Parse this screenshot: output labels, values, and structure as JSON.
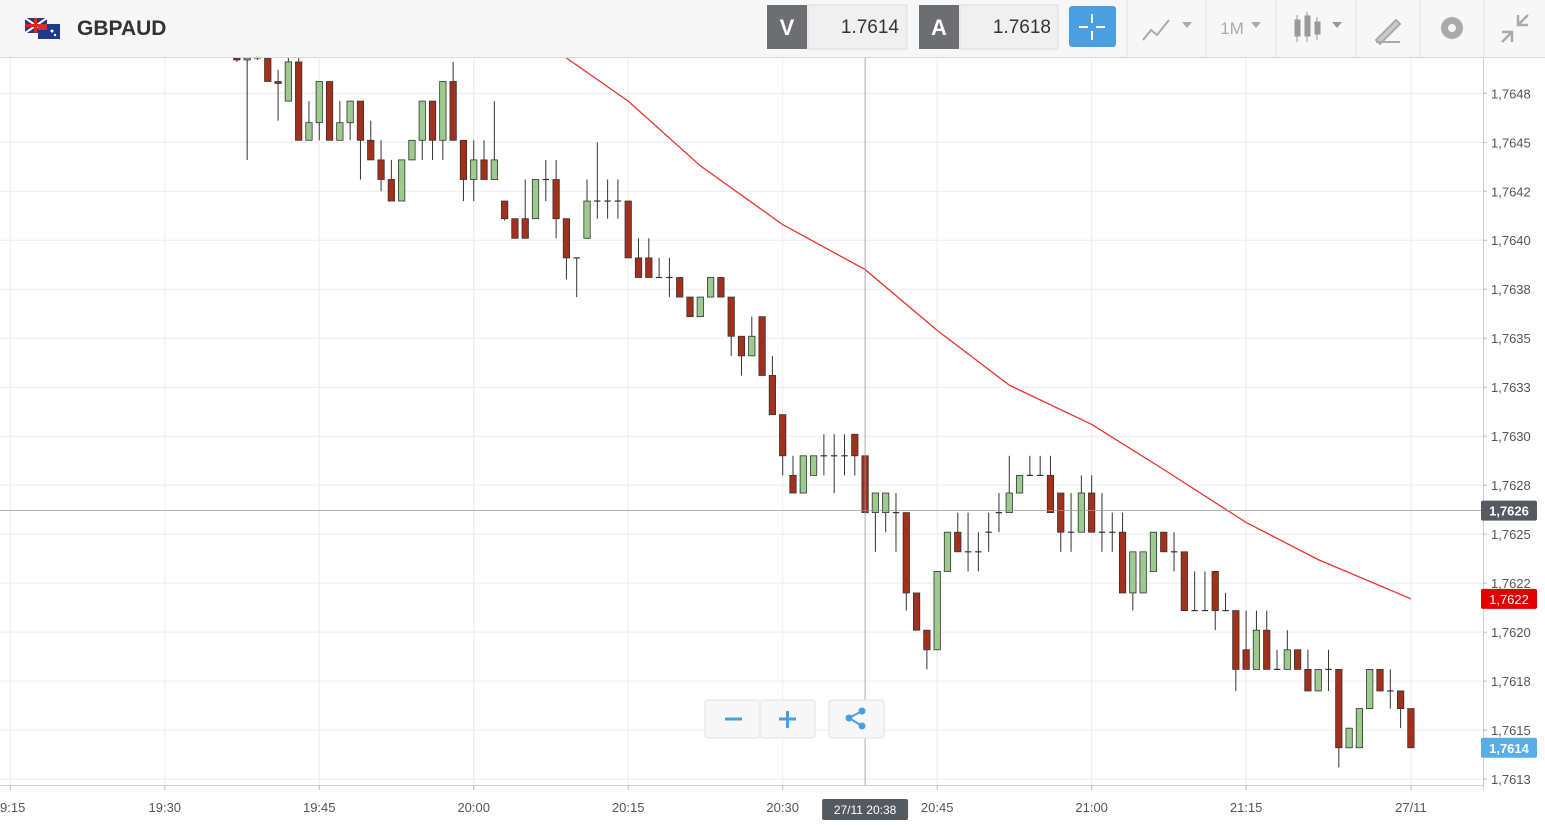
{
  "header": {
    "symbol": "GBPAUD",
    "sell_label": "V",
    "sell_price": "1.7614",
    "buy_label": "A",
    "buy_price": "1.7618",
    "timeframe": "1M"
  },
  "chart_data": {
    "type": "candlestick",
    "xlim": [
      "19:14",
      "21:38"
    ],
    "ylim": [
      1.76122,
      1.76493
    ],
    "xticks": [
      {
        "value": "19:15",
        "label": "9:15"
      },
      "19:30",
      "19:45",
      "20:00",
      "20:15",
      "20:30",
      "20:45",
      "21:00",
      "21:15",
      {
        "value": "21:31",
        "label": "27/11"
      }
    ],
    "yticks": [
      {
        "value": 1.76475,
        "label": "1,7648"
      },
      {
        "value": 1.7645,
        "label": "1,7645"
      },
      {
        "value": 1.76425,
        "label": "1,7642"
      },
      {
        "value": 1.764,
        "label": "1,7640"
      },
      {
        "value": 1.76375,
        "label": "1,7638"
      },
      {
        "value": 1.7635,
        "label": "1,7635"
      },
      {
        "value": 1.76325,
        "label": "1,7633"
      },
      {
        "value": 1.763,
        "label": "1,7630"
      },
      {
        "value": 1.76275,
        "label": "1,7628"
      },
      {
        "value": 1.7625,
        "label": "1,7625"
      },
      {
        "value": 1.76225,
        "label": "1,7622"
      },
      {
        "value": 1.762,
        "label": "1,7620"
      },
      {
        "value": 1.76175,
        "label": "1,7618"
      },
      {
        "value": 1.7615,
        "label": "1,7615"
      },
      {
        "value": 1.76125,
        "label": "1,7613"
      }
    ],
    "grid": true,
    "up_color": "#9dca8e",
    "down_color": "#a3301b",
    "x": [
      "19:37",
      "19:38",
      "19:39",
      "19:40",
      "19:41",
      "19:42",
      "19:43",
      "19:44",
      "19:45",
      "19:46",
      "19:47",
      "19:48",
      "19:49",
      "19:50",
      "19:51",
      "19:52",
      "19:53",
      "19:54",
      "19:55",
      "19:56",
      "19:57",
      "19:58",
      "19:59",
      "20:00",
      "20:01",
      "20:02",
      "20:03",
      "20:04",
      "20:05",
      "20:06",
      "20:07",
      "20:08",
      "20:09",
      "20:10",
      "20:11",
      "20:12",
      "20:13",
      "20:14",
      "20:15",
      "20:16",
      "20:17",
      "20:18",
      "20:19",
      "20:20",
      "20:21",
      "20:22",
      "20:23",
      "20:24",
      "20:25",
      "20:26",
      "20:27",
      "20:28",
      "20:29",
      "20:30",
      "20:31",
      "20:32",
      "20:33",
      "20:34",
      "20:35",
      "20:36",
      "20:37",
      "20:38",
      "20:39",
      "20:40",
      "20:41",
      "20:42",
      "20:43",
      "20:44",
      "20:45",
      "20:46",
      "20:47",
      "20:48",
      "20:49",
      "20:50",
      "20:51",
      "20:52",
      "20:53",
      "20:54",
      "20:55",
      "20:56",
      "20:57",
      "20:58",
      "20:59",
      "21:00",
      "21:01",
      "21:02",
      "21:03",
      "21:04",
      "21:05",
      "21:06",
      "21:07",
      "21:08",
      "21:09",
      "21:10",
      "21:11",
      "21:12",
      "21:13",
      "21:14",
      "21:15",
      "21:16",
      "21:17",
      "21:18",
      "21:19",
      "21:20",
      "21:21",
      "21:22",
      "21:23",
      "21:24",
      "21:25",
      "21:26",
      "21:27",
      "21:28",
      "21:29",
      "21:30",
      "21:31"
    ],
    "open": [
      1.76493,
      1.76492,
      1.76493,
      1.76493,
      1.76481,
      1.76471,
      1.76491,
      1.76451,
      1.7646,
      1.76481,
      1.76451,
      1.7646,
      1.76471,
      1.76451,
      1.76441,
      1.76431,
      1.7642,
      1.76441,
      1.76451,
      1.76471,
      1.76451,
      1.76481,
      1.76451,
      1.76431,
      1.76441,
      1.76431,
      1.7642,
      1.76411,
      1.76411,
      1.76411,
      1.76431,
      1.76431,
      1.76411,
      1.76391,
      1.76401,
      1.7642,
      1.7642,
      1.7642,
      1.7642,
      1.76391,
      1.76391,
      1.76381,
      1.76381,
      1.76381,
      1.76371,
      1.76361,
      1.76371,
      1.76381,
      1.76371,
      1.76351,
      1.76341,
      1.76361,
      1.76331,
      1.76311,
      1.7628,
      1.76271,
      1.7628,
      1.7629,
      1.7629,
      1.7629,
      1.76301,
      1.7629,
      1.76261,
      1.76261,
      1.76261,
      1.76261,
      1.7622,
      1.76201,
      1.76191,
      1.76231,
      1.76251,
      1.76241,
      1.76241,
      1.76251,
      1.76261,
      1.76261,
      1.76271,
      1.7628,
      1.7628,
      1.7628,
      1.76271,
      1.76251,
      1.76251,
      1.76271,
      1.76251,
      1.76251,
      1.76251,
      1.7622,
      1.7622,
      1.76231,
      1.76251,
      1.76241,
      1.76241,
      1.76211,
      1.76211,
      1.76231,
      1.76211,
      1.76211,
      1.76191,
      1.76181,
      1.76201,
      1.76181,
      1.76181,
      1.76191,
      1.76181,
      1.7617,
      1.76181,
      1.76181,
      1.76141,
      1.76141,
      1.76161,
      1.76181,
      1.7617,
      1.7617,
      1.76161
    ],
    "high": [
      1.76494,
      1.76494,
      1.76494,
      1.76494,
      1.76487,
      1.76493,
      1.76493,
      1.76471,
      1.76481,
      1.76481,
      1.76471,
      1.76471,
      1.76471,
      1.76461,
      1.76451,
      1.76441,
      1.76441,
      1.76451,
      1.76471,
      1.76471,
      1.76481,
      1.76491,
      1.76451,
      1.76451,
      1.76451,
      1.76471,
      1.7642,
      1.76411,
      1.76431,
      1.76431,
      1.76441,
      1.76441,
      1.76411,
      1.76391,
      1.76431,
      1.7645,
      1.76431,
      1.76431,
      1.7642,
      1.76401,
      1.76401,
      1.76391,
      1.76391,
      1.76381,
      1.76371,
      1.76371,
      1.76381,
      1.76381,
      1.76371,
      1.76351,
      1.76361,
      1.76361,
      1.76341,
      1.76311,
      1.7629,
      1.7629,
      1.7629,
      1.76301,
      1.76301,
      1.76301,
      1.76301,
      1.7629,
      1.76271,
      1.76271,
      1.76271,
      1.76261,
      1.7622,
      1.76201,
      1.76231,
      1.76251,
      1.76261,
      1.76261,
      1.76251,
      1.76261,
      1.76271,
      1.7629,
      1.7628,
      1.7629,
      1.7629,
      1.7629,
      1.76271,
      1.76271,
      1.7628,
      1.7628,
      1.76271,
      1.76261,
      1.76261,
      1.76241,
      1.76241,
      1.76251,
      1.76251,
      1.76251,
      1.76241,
      1.76231,
      1.76231,
      1.76231,
      1.7622,
      1.76211,
      1.76211,
      1.76211,
      1.76211,
      1.76191,
      1.76201,
      1.76191,
      1.76191,
      1.76181,
      1.76191,
      1.76181,
      1.76151,
      1.76161,
      1.76181,
      1.76181,
      1.76181,
      1.7617,
      1.76161
    ],
    "low": [
      1.76491,
      1.76441,
      1.76492,
      1.76481,
      1.76461,
      1.76471,
      1.76451,
      1.76451,
      1.76451,
      1.76451,
      1.76451,
      1.76451,
      1.76431,
      1.76441,
      1.76425,
      1.7642,
      1.7642,
      1.76441,
      1.76441,
      1.76441,
      1.76441,
      1.76451,
      1.7642,
      1.7642,
      1.76431,
      1.76431,
      1.7641,
      1.76401,
      1.76401,
      1.76411,
      1.7642,
      1.76401,
      1.7638,
      1.76371,
      1.76401,
      1.76411,
      1.76411,
      1.76411,
      1.76391,
      1.76381,
      1.76381,
      1.76381,
      1.76371,
      1.76371,
      1.76361,
      1.76361,
      1.76371,
      1.76371,
      1.76341,
      1.76331,
      1.76341,
      1.76331,
      1.76311,
      1.7628,
      1.76271,
      1.76271,
      1.7628,
      1.7628,
      1.76271,
      1.7628,
      1.7628,
      1.76261,
      1.76241,
      1.76251,
      1.76241,
      1.76211,
      1.76201,
      1.76181,
      1.76191,
      1.76231,
      1.76241,
      1.76231,
      1.76231,
      1.76241,
      1.76251,
      1.76261,
      1.76271,
      1.7628,
      1.7628,
      1.76261,
      1.76241,
      1.76241,
      1.76251,
      1.76251,
      1.76241,
      1.76241,
      1.7622,
      1.76211,
      1.7622,
      1.76231,
      1.76241,
      1.76231,
      1.76211,
      1.76211,
      1.76211,
      1.76201,
      1.76211,
      1.7617,
      1.76181,
      1.76181,
      1.76181,
      1.76181,
      1.76181,
      1.76181,
      1.7617,
      1.7617,
      1.7617,
      1.76131,
      1.76141,
      1.76141,
      1.76161,
      1.7617,
      1.76161,
      1.76151,
      1.76141
    ],
    "close": [
      1.76492,
      1.76493,
      1.76493,
      1.76481,
      1.7648,
      1.76491,
      1.76451,
      1.7646,
      1.76481,
      1.76451,
      1.7646,
      1.76471,
      1.76451,
      1.76441,
      1.76431,
      1.7642,
      1.76441,
      1.76451,
      1.76471,
      1.76451,
      1.76481,
      1.76451,
      1.76431,
      1.76441,
      1.76431,
      1.76441,
      1.76411,
      1.76401,
      1.76401,
      1.76431,
      1.76431,
      1.76411,
      1.76391,
      1.76391,
      1.7642,
      1.7642,
      1.7642,
      1.7642,
      1.76391,
      1.76381,
      1.76381,
      1.76381,
      1.76381,
      1.76371,
      1.76361,
      1.76371,
      1.76381,
      1.76371,
      1.76351,
      1.76341,
      1.76351,
      1.76331,
      1.76311,
      1.7629,
      1.76271,
      1.7629,
      1.7629,
      1.7629,
      1.7629,
      1.7629,
      1.7629,
      1.76261,
      1.76271,
      1.76271,
      1.76261,
      1.7622,
      1.76201,
      1.76191,
      1.76231,
      1.76251,
      1.76241,
      1.76241,
      1.76241,
      1.76251,
      1.76261,
      1.76271,
      1.7628,
      1.7628,
      1.7628,
      1.76261,
      1.76251,
      1.76251,
      1.76271,
      1.76251,
      1.76251,
      1.76251,
      1.7622,
      1.76241,
      1.76241,
      1.76251,
      1.76241,
      1.76241,
      1.76211,
      1.76211,
      1.76211,
      1.76211,
      1.76211,
      1.76181,
      1.76181,
      1.76201,
      1.76181,
      1.76181,
      1.76191,
      1.76181,
      1.7617,
      1.76181,
      1.76181,
      1.76141,
      1.76151,
      1.76161,
      1.76181,
      1.7617,
      1.7617,
      1.76161,
      1.76141
    ],
    "last_price_label": "1,7614",
    "moving_average": {
      "color": "#e8342c",
      "x": [
        "20:09",
        "20:15",
        "20:22",
        "20:30",
        "20:38",
        "20:45",
        "20:52",
        "21:00",
        "21:07",
        "21:15",
        "21:22",
        "21:31"
      ],
      "values": [
        1.76493,
        1.76471,
        1.76438,
        1.76408,
        1.76385,
        1.76354,
        1.76326,
        1.76306,
        1.76283,
        1.76256,
        1.76237,
        1.76217
      ],
      "last_value_label": "1,7622"
    },
    "crosshair": {
      "time": "20:38",
      "time_label": "27/11 20:38",
      "price": 1.76262,
      "price_label": "1,7626"
    }
  }
}
